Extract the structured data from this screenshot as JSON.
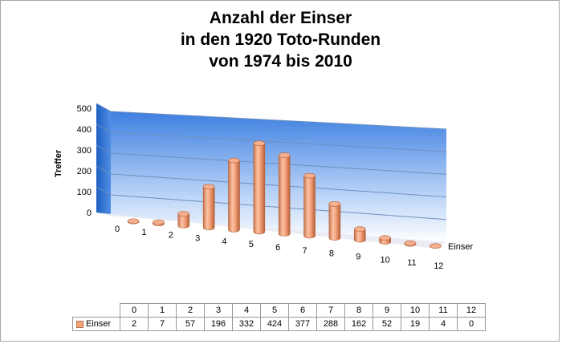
{
  "chart_data": {
    "type": "bar",
    "title_lines": [
      "Anzahl der Einser",
      "in den 1920 Toto-Runden",
      "von 1974 bis 2010"
    ],
    "ylabel": "Treffer",
    "xlabel": "Einser",
    "ylim": [
      0,
      500
    ],
    "yticks": [
      "0",
      "100",
      "200",
      "300",
      "400",
      "500"
    ],
    "categories": [
      "0",
      "1",
      "2",
      "3",
      "4",
      "5",
      "6",
      "7",
      "8",
      "9",
      "10",
      "11",
      "12"
    ],
    "series": [
      {
        "name": "Einser",
        "values": [
          2,
          7,
          57,
          196,
          332,
          424,
          377,
          288,
          162,
          52,
          19,
          4,
          0
        ]
      }
    ],
    "grid": true,
    "data_table": true,
    "colors": {
      "bar_fill": "#f6a37c",
      "bar_edge": "#b46f4c",
      "back_wall_top": "#3d7fe0",
      "back_wall_bottom": "#ffffff",
      "side_wall": "#2f6fd0",
      "floor": "#e6e6f2"
    }
  }
}
